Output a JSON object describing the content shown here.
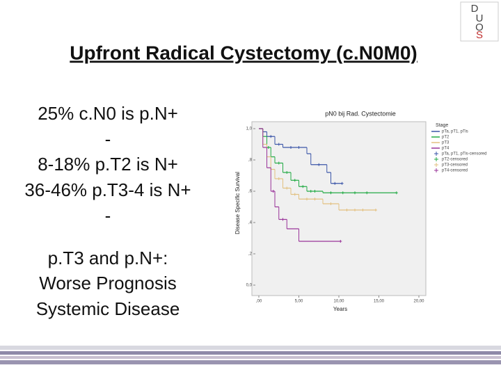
{
  "slide": {
    "title": "Upfront Radical Cystectomy (c.N0M0)",
    "lines": [
      "25% c.N0 is p.N+",
      "-",
      "8-18% p.T2 is N+",
      "36-46% p.T3-4 is N+",
      "-",
      "p.T3 and p.N+:",
      "Worse Prognosis",
      "Systemic Disease"
    ],
    "logo": [
      "D",
      "U",
      "O",
      "S"
    ]
  },
  "chart_data": {
    "type": "step",
    "title": "pN0 bij Rad. Cystectomie",
    "y_label": "Disease Specific Survival",
    "x_label": "Years",
    "legend_title": "Stage",
    "xlim": [
      0,
      20
    ],
    "ylim": [
      0,
      1
    ],
    "xticks": [
      {
        "value": 0,
        "label": ",00"
      },
      {
        "value": 5,
        "label": "5,00"
      },
      {
        "value": 10,
        "label": "10,00"
      },
      {
        "value": 15,
        "label": "15,00"
      },
      {
        "value": 20,
        "label": "20,00"
      }
    ],
    "yticks": [
      {
        "value": 0,
        "label": "0,0"
      },
      {
        "value": 0.2,
        "label": ",2"
      },
      {
        "value": 0.4,
        "label": ",4"
      },
      {
        "value": 0.6,
        "label": ",6"
      },
      {
        "value": 0.8,
        "label": ",8"
      },
      {
        "value": 1,
        "label": "1,0"
      }
    ],
    "series": [
      {
        "name": "pTa, pT1, pTis",
        "censored_name": "pTa, pT1, pTis-censored",
        "color": "#3a55a8",
        "x": [
          0,
          0.5,
          1,
          2,
          3,
          6,
          6.5,
          8.5,
          9,
          10.4
        ],
        "values": [
          1,
          0.98,
          0.95,
          0.9,
          0.88,
          0.84,
          0.77,
          0.72,
          0.65,
          0.65
        ],
        "censored": [
          1.5,
          2.5,
          4,
          5,
          7.5,
          9.5,
          10.4
        ]
      },
      {
        "name": "pT2",
        "censored_name": "pT2-censored",
        "color": "#22aa44",
        "x": [
          0,
          0.5,
          1,
          1.5,
          2,
          3,
          4,
          5,
          6,
          8,
          17.2
        ],
        "values": [
          1,
          0.95,
          0.88,
          0.82,
          0.78,
          0.72,
          0.67,
          0.63,
          0.6,
          0.59,
          0.59
        ],
        "censored": [
          1.2,
          2.5,
          3.5,
          4.5,
          5.5,
          6.5,
          7,
          9,
          10.5,
          12,
          13.5,
          17.2
        ]
      },
      {
        "name": "pT3",
        "censored_name": "pT3-censored",
        "color": "#e2c080",
        "x": [
          0,
          0.5,
          1,
          1.5,
          2,
          3,
          4,
          5,
          8,
          10,
          14.6
        ],
        "values": [
          1,
          0.9,
          0.82,
          0.74,
          0.68,
          0.62,
          0.58,
          0.55,
          0.52,
          0.48,
          0.48
        ],
        "censored": [
          2.5,
          3.5,
          4.5,
          6,
          7,
          9,
          11,
          12,
          13,
          14.6
        ]
      },
      {
        "name": "pT4",
        "censored_name": "pT4-censored",
        "color": "#993399",
        "x": [
          0,
          0.5,
          1,
          1.5,
          2,
          2.5,
          3.5,
          5,
          10.2
        ],
        "values": [
          1,
          0.88,
          0.75,
          0.6,
          0.5,
          0.42,
          0.36,
          0.28,
          0.28
        ],
        "censored": [
          1.8,
          3,
          10.2
        ]
      }
    ]
  }
}
